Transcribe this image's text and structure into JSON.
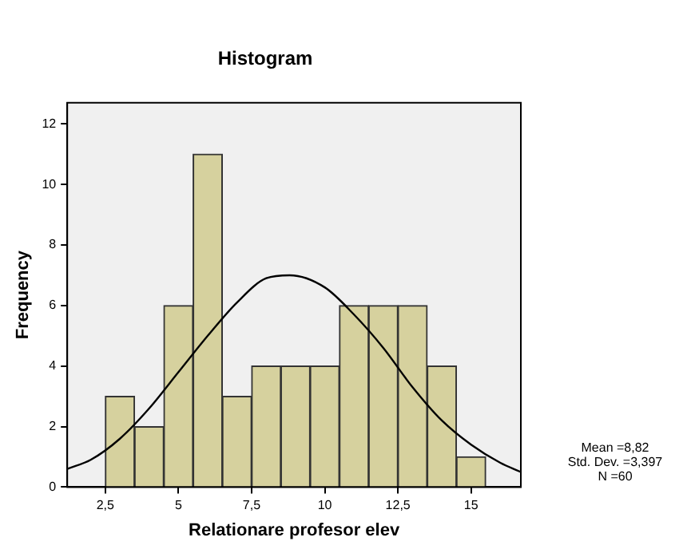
{
  "chart_data": {
    "type": "histogram",
    "title": "Histogram",
    "xlabel": "Relationare profesor elev",
    "ylabel": "Frequency",
    "bins": [
      2.5,
      3.5,
      4.5,
      5.5,
      6.5,
      7.5,
      8.5,
      9.5,
      10.5,
      11.5,
      12.5,
      13.5,
      14.5,
      15.5
    ],
    "values": [
      3,
      2,
      6,
      11,
      3,
      4,
      4,
      4,
      6,
      6,
      6,
      4,
      1
    ],
    "color": "#d6d19e",
    "series": [
      {
        "type": "line",
        "color": "#000000",
        "x": [
          1.2,
          2,
          3,
          4,
          5,
          6,
          7,
          8,
          8.8,
          10,
          11,
          12,
          13,
          14,
          15,
          16,
          16.7
        ],
        "values": [
          0.6,
          0.9,
          1.6,
          2.6,
          3.8,
          5,
          6.1,
          6.9,
          7,
          6.6,
          5.7,
          4.6,
          3.3,
          2.2,
          1.4,
          0.8,
          0.5
        ]
      }
    ],
    "xlim": [
      1.2,
      16.7
    ],
    "xticks": [
      {
        "value": 2.5,
        "label": "2,5"
      },
      5,
      {
        "value": 7.5,
        "label": "7,5"
      },
      10,
      {
        "value": 12.5,
        "label": "12,5"
      },
      15
    ],
    "ylim": [
      0,
      12.7
    ],
    "yticks": [
      0,
      2,
      4,
      6,
      8,
      10,
      12
    ],
    "grid": false,
    "legend": false,
    "marker": "none",
    "annotations": [
      "Mean =8,82",
      "Std. Dev. =3,397",
      "N =60"
    ]
  }
}
